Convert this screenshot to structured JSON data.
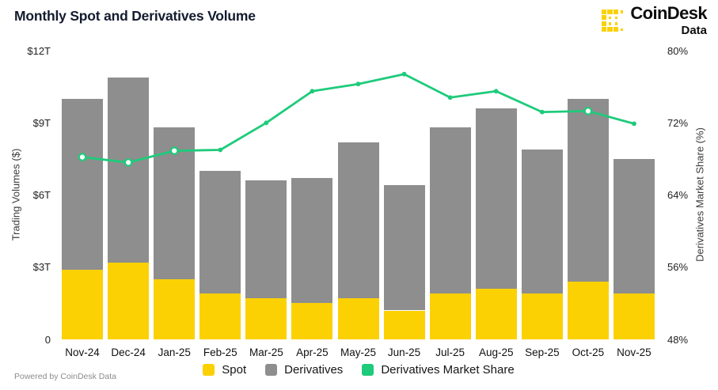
{
  "header": {
    "title": "Monthly Spot and Derivatives Volume",
    "brand": {
      "name": "CoinDesk",
      "sub": "Data",
      "icon": "coindesk-pixel-c-icon",
      "icon_color": "#fbd104"
    }
  },
  "footer": {
    "powered_by": "Powered by CoinDesk Data"
  },
  "legend": [
    {
      "label": "Spot",
      "color": "#fbd104"
    },
    {
      "label": "Derivatives",
      "color": "#8e8e8e"
    },
    {
      "label": "Derivatives Market Share",
      "color": "#1ecb7b"
    }
  ],
  "chart_data": {
    "type": "bar",
    "subtype": "stacked-bars-with-line-overlay",
    "title": "Monthly Spot and Derivatives Volume",
    "categories": [
      "Nov-24",
      "Dec-24",
      "Jan-25",
      "Feb-25",
      "Mar-25",
      "Apr-25",
      "May-25",
      "Jun-25",
      "Jul-25",
      "Aug-25",
      "Sep-25",
      "Oct-25",
      "Nov-25"
    ],
    "series": [
      {
        "name": "Spot",
        "type": "bar",
        "stack": "volume",
        "axis": "left",
        "color": "#fbd104",
        "values": [
          2.9,
          3.2,
          2.5,
          1.9,
          1.7,
          1.5,
          1.7,
          1.2,
          1.9,
          2.1,
          1.9,
          2.4,
          1.9
        ]
      },
      {
        "name": "Derivatives",
        "type": "bar",
        "stack": "volume",
        "axis": "left",
        "color": "#8e8e8e",
        "values": [
          7.1,
          7.7,
          6.3,
          5.1,
          4.9,
          5.2,
          6.5,
          5.2,
          6.9,
          7.5,
          6.0,
          7.6,
          5.6
        ]
      },
      {
        "name": "Derivatives Market Share",
        "type": "line",
        "axis": "right",
        "color": "#1ecb7b",
        "values": [
          68.2,
          67.6,
          68.9,
          69.0,
          72.0,
          75.5,
          76.3,
          77.4,
          74.8,
          75.5,
          73.2,
          73.3,
          71.9
        ],
        "open_markers": [
          "Nov-24",
          "Dec-24",
          "Jan-25",
          "Oct-25"
        ]
      }
    ],
    "left_axis": {
      "label": "Trading Volumes ($)",
      "ticks": [
        "$12T",
        "$9T",
        "$6T",
        "$3T",
        "0"
      ],
      "min": 0,
      "max": 12,
      "unit": "trillion USD"
    },
    "right_axis": {
      "label": "Derivatives Market Share (%)",
      "ticks": [
        "80%",
        "72%",
        "64%",
        "56%",
        "48%"
      ],
      "min": 48,
      "max": 80,
      "unit": "%"
    },
    "grid": false,
    "legend_position": "bottom"
  }
}
